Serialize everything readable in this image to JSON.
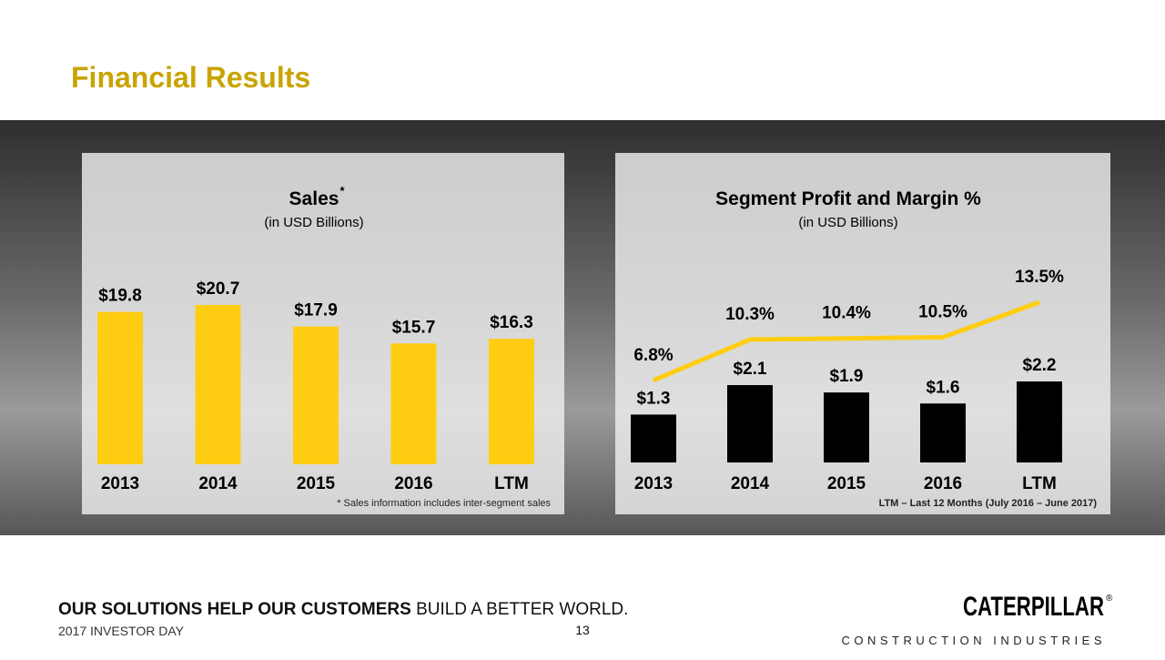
{
  "header": {
    "title": "Financial Results"
  },
  "chart_data": [
    {
      "type": "bar",
      "title": "Sales",
      "title_mark": "*",
      "subtitle": "(in USD Billions)",
      "categories": [
        "2013",
        "2014",
        "2015",
        "2016",
        "LTM"
      ],
      "series": [
        {
          "type": "bar",
          "color": "#ffcd11",
          "values": [
            19.8,
            20.7,
            17.9,
            15.7,
            16.3
          ],
          "value_labels": [
            "$19.8",
            "$20.7",
            "$17.9",
            "$15.7",
            "$16.3"
          ]
        }
      ],
      "note": "* Sales information includes inter-segment sales"
    },
    {
      "type": "bar",
      "title": "Segment Profit and Margin %",
      "subtitle": "(in USD Billions)",
      "categories": [
        "2013",
        "2014",
        "2015",
        "2016",
        "LTM"
      ],
      "series": [
        {
          "type": "bar",
          "color": "#000000",
          "values": [
            1.3,
            2.1,
            1.9,
            1.6,
            2.2
          ],
          "value_labels": [
            "$1.3",
            "$2.1",
            "$1.9",
            "$1.6",
            "$2.2"
          ]
        },
        {
          "type": "line",
          "color": "#ffcd11",
          "values": [
            6.8,
            10.3,
            10.4,
            10.5,
            13.5
          ],
          "value_labels": [
            "6.8%",
            "10.3%",
            "10.4%",
            "10.5%",
            "13.5%"
          ]
        }
      ],
      "note": "LTM – Last 12 Months (July 2016 – June 2017)"
    }
  ],
  "footer": {
    "tagline_bold": "OUR SOLUTIONS HELP OUR CUSTOMERS",
    "tagline_rest": "BUILD A BETTER WORLD.",
    "event": "2017 INVESTOR DAY",
    "page": "13",
    "brand": "CATERPILLAR",
    "brand_mark": "®",
    "division": "CONSTRUCTION INDUSTRIES"
  }
}
